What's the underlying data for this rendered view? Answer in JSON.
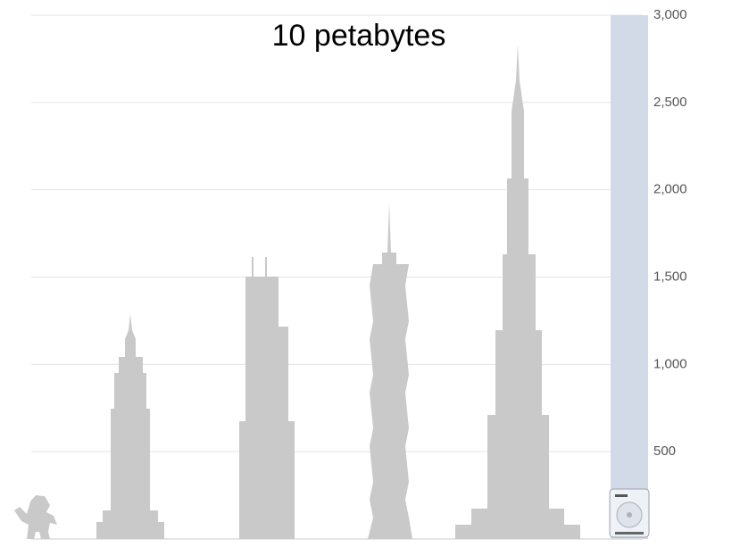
{
  "chart_data": {
    "type": "bar",
    "annotation": "10 petabytes",
    "values": [
      3000
    ],
    "color": "#d1dae6",
    "ylim": [
      0,
      3000
    ],
    "yticks": [
      500,
      {
        "value": 1000,
        "label": "1,000"
      },
      {
        "value": 1500,
        "label": "1,500"
      },
      {
        "value": 2000,
        "label": "2,000"
      },
      {
        "value": 2500,
        "label": "2,500"
      },
      {
        "value": 3000,
        "label": "3,000"
      }
    ],
    "grid": true
  }
}
